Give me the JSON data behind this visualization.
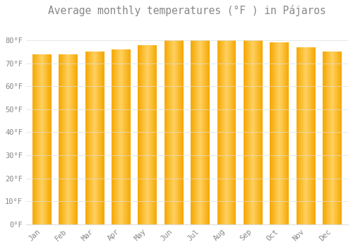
{
  "title": "Average monthly temperatures (°F ) in Pájaros",
  "months": [
    "Jan",
    "Feb",
    "Mar",
    "Apr",
    "May",
    "Jun",
    "Jul",
    "Aug",
    "Sep",
    "Oct",
    "Nov",
    "Dec"
  ],
  "values": [
    74,
    74,
    75,
    76,
    78,
    80,
    80,
    80,
    80,
    79,
    77,
    75
  ],
  "bar_color_center": "#FFD060",
  "bar_color_edge": "#F5A800",
  "background_color": "#ffffff",
  "grid_color": "#dddddd",
  "ylim": [
    0,
    88
  ],
  "yticks": [
    0,
    10,
    20,
    30,
    40,
    50,
    60,
    70,
    80
  ],
  "ytick_labels": [
    "0°F",
    "10°F",
    "20°F",
    "30°F",
    "40°F",
    "50°F",
    "60°F",
    "70°F",
    "80°F"
  ],
  "title_fontsize": 10.5,
  "tick_fontsize": 7.5,
  "font_color": "#888888",
  "bar_width": 0.72
}
